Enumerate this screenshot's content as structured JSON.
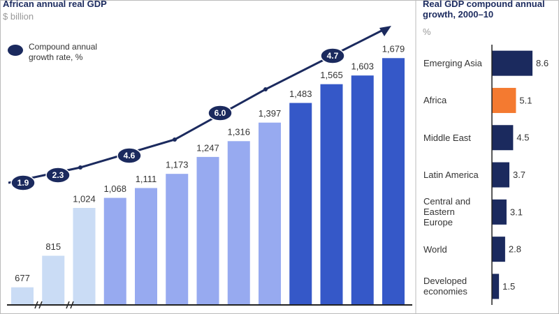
{
  "chart_data": [
    {
      "type": "bar",
      "title": "African annual real GDP",
      "subtitle": "$ billion",
      "legend_label": "Compound annual growth rate, %",
      "legend_color": "#1b2a5e",
      "categories": [
        null,
        null,
        null,
        null,
        null,
        null,
        null,
        null,
        null,
        null,
        null,
        null,
        null
      ],
      "values": [
        677,
        815,
        1024,
        1068,
        1111,
        1173,
        1247,
        1316,
        1397,
        1483,
        1565,
        1603,
        1679
      ],
      "value_labels": [
        "677",
        "815",
        "1,024",
        "1,068",
        "1,111",
        "1,173",
        "1,247",
        "1,316",
        "1,397",
        "1,483",
        "1,565",
        "1,603",
        "1,679"
      ],
      "colors": [
        "#cadcf5",
        "#cadcf5",
        "#cadcf5",
        "#97aaf0",
        "#97aaf0",
        "#97aaf0",
        "#97aaf0",
        "#97aaf0",
        "#97aaf0",
        "#3558c8",
        "#3558c8",
        "#3558c8",
        "#3558c8"
      ],
      "ylim": [
        600,
        1750
      ],
      "growth_rates": {
        "values": [
          1.9,
          2.3,
          4.6,
          6.0,
          4.7
        ],
        "value_labels": [
          "1.9",
          "2.3",
          "4.6",
          "6.0",
          "4.7"
        ]
      }
    },
    {
      "type": "hbar",
      "title": "Real GDP compound annual growth, 2000–10",
      "subtitle": "%",
      "categories": [
        "Emerging Asia",
        "Africa",
        "Middle East",
        "Latin America",
        "Central and Eastern Europe",
        "World",
        "Developed economies"
      ],
      "values": [
        8.6,
        5.1,
        4.5,
        3.7,
        3.1,
        2.8,
        1.5
      ],
      "colors": [
        "#1b2a5e",
        "#f47a30",
        "#1b2a5e",
        "#1b2a5e",
        "#1b2a5e",
        "#1b2a5e",
        "#1b2a5e"
      ],
      "xlim": [
        0,
        12
      ]
    }
  ]
}
